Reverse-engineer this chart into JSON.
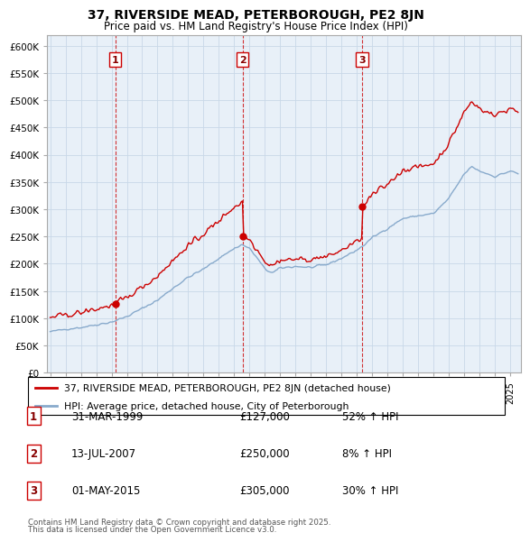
{
  "title": "37, RIVERSIDE MEAD, PETERBOROUGH, PE2 8JN",
  "subtitle": "Price paid vs. HM Land Registry's House Price Index (HPI)",
  "legend_line1": "37, RIVERSIDE MEAD, PETERBOROUGH, PE2 8JN (detached house)",
  "legend_line2": "HPI: Average price, detached house, City of Peterborough",
  "footer1": "Contains HM Land Registry data © Crown copyright and database right 2025.",
  "footer2": "This data is licensed under the Open Government Licence v3.0.",
  "transactions": [
    {
      "num": 1,
      "date": "31-MAR-1999",
      "price": "£127,000",
      "change": "52% ↑ HPI",
      "year": 1999.25,
      "price_val": 127000
    },
    {
      "num": 2,
      "date": "13-JUL-2007",
      "price": "£250,000",
      "change": "8% ↑ HPI",
      "year": 2007.54,
      "price_val": 250000
    },
    {
      "num": 3,
      "date": "01-MAY-2015",
      "price": "£305,000",
      "change": "30% ↑ HPI",
      "year": 2015.33,
      "price_val": 305000
    }
  ],
  "red_line_color": "#cc0000",
  "blue_line_color": "#88aacc",
  "grid_color": "#c8d8e8",
  "plot_bg_color": "#e8f0f8",
  "background_color": "#ffffff",
  "ylim": [
    0,
    620000
  ],
  "ytick_vals": [
    0,
    50000,
    100000,
    150000,
    200000,
    250000,
    300000,
    350000,
    400000,
    450000,
    500000,
    550000,
    600000
  ],
  "ytick_labels": [
    "£0",
    "£50K",
    "£100K",
    "£150K",
    "£200K",
    "£250K",
    "£300K",
    "£350K",
    "£400K",
    "£450K",
    "£500K",
    "£550K",
    "£600K"
  ],
  "xlim_start": 1994.8,
  "xlim_end": 2025.7
}
